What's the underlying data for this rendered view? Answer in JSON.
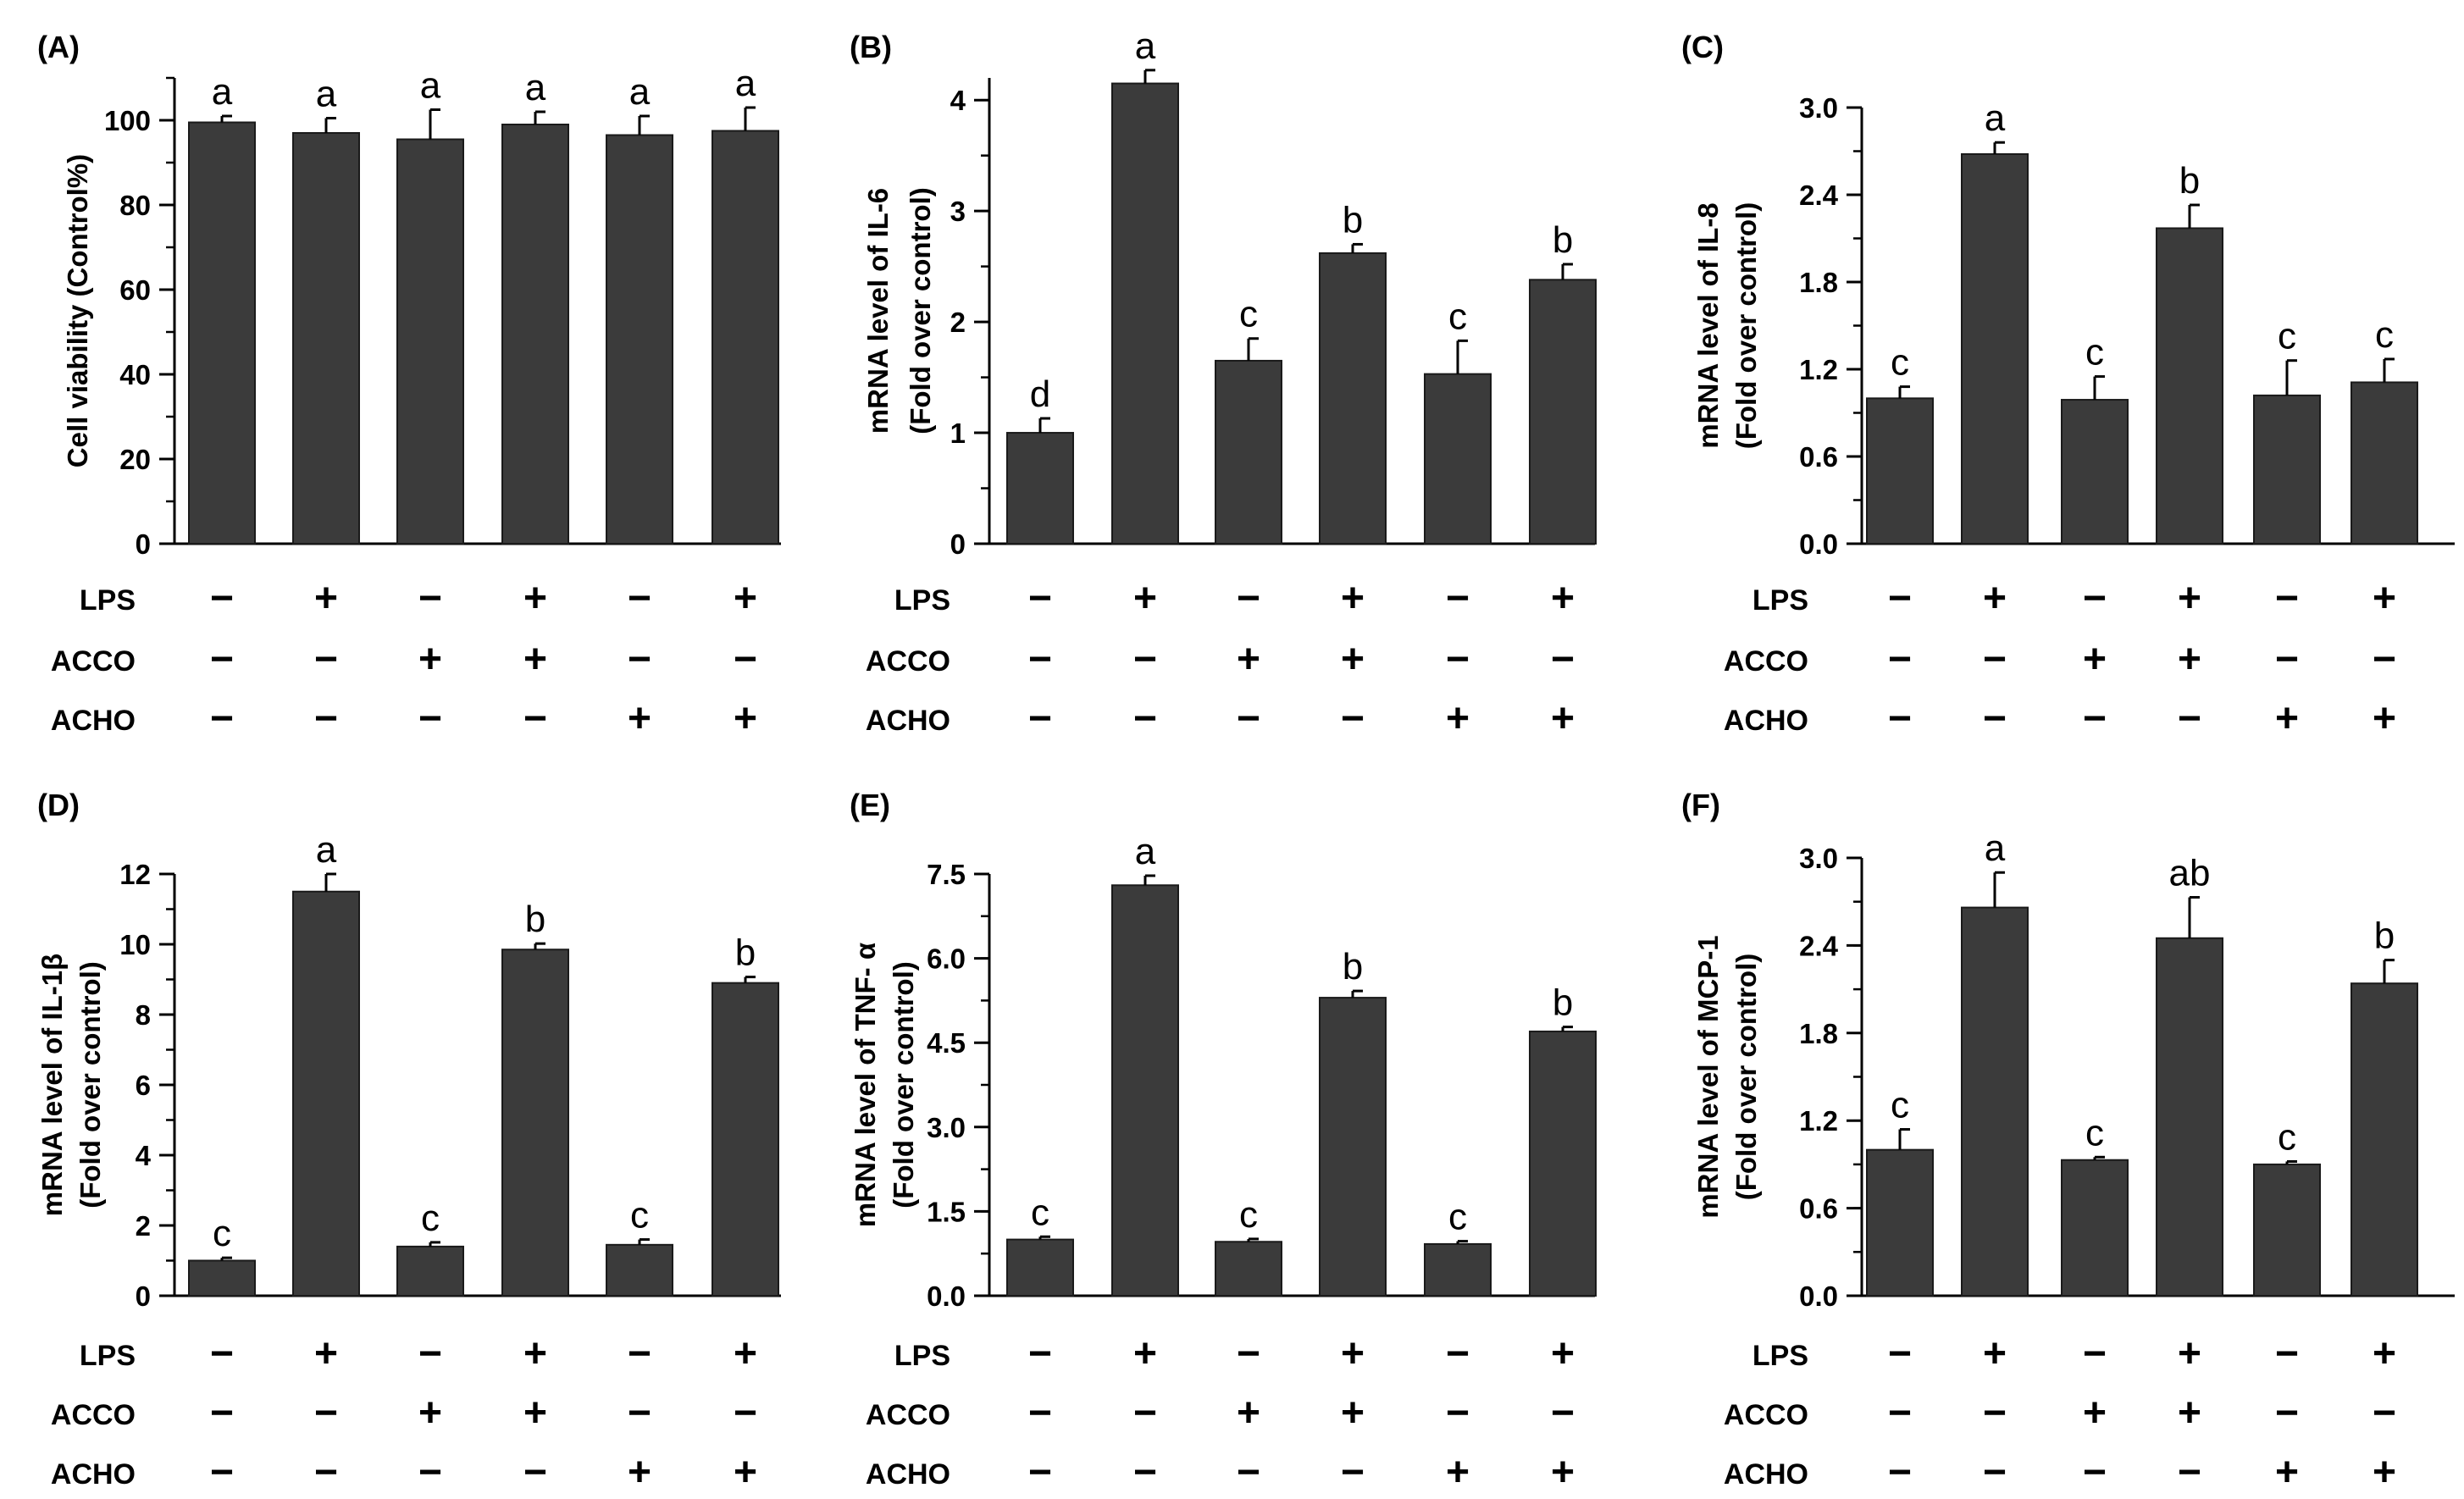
{
  "treatment_rows": [
    "LPS",
    "ACCO",
    "ACHO"
  ],
  "chart_data": [
    {
      "type": "bar",
      "panel": "(A)",
      "ylabel_lines": [
        "Cell viability (Control%)"
      ],
      "ylim": [
        0,
        110
      ],
      "yticks": [
        "0",
        "20",
        "40",
        "60",
        "80",
        "100"
      ],
      "minor_step": 10,
      "values": [
        99.5,
        97.0,
        95.5,
        99.0,
        96.5,
        97.5
      ],
      "errors": [
        1.5,
        3.5,
        7.0,
        3.0,
        4.5,
        5.5
      ],
      "letters": [
        "a",
        "a",
        "a",
        "a",
        "a",
        "a"
      ],
      "treatments": {
        "LPS": [
          "−",
          "+",
          "−",
          "+",
          "−",
          "+"
        ],
        "ACCO": [
          "−",
          "−",
          "+",
          "+",
          "−",
          "−"
        ],
        "ACHO": [
          "−",
          "−",
          "−",
          "−",
          "+",
          "+"
        ]
      }
    },
    {
      "type": "bar",
      "panel": "(B)",
      "ylabel_lines": [
        "mRNA level of IL-6",
        "(Fold over control)"
      ],
      "ylim": [
        0,
        4.2
      ],
      "yticks": [
        "0",
        "1",
        "2",
        "3",
        "4"
      ],
      "minor_step": 0.5,
      "values": [
        1.0,
        4.15,
        1.65,
        2.62,
        1.53,
        2.38
      ],
      "errors": [
        0.13,
        0.12,
        0.2,
        0.08,
        0.3,
        0.14
      ],
      "letters": [
        "d",
        "a",
        "c",
        "b",
        "c",
        "b"
      ],
      "treatments": {
        "LPS": [
          "−",
          "+",
          "−",
          "+",
          "−",
          "+"
        ],
        "ACCO": [
          "−",
          "−",
          "+",
          "+",
          "−",
          "−"
        ],
        "ACHO": [
          "−",
          "−",
          "−",
          "−",
          "+",
          "+"
        ]
      }
    },
    {
      "type": "bar",
      "panel": "(C)",
      "ylabel_lines": [
        "mRNA level of IL-8",
        "(Fold over control)"
      ],
      "ylim": [
        0,
        3.0
      ],
      "yticks": [
        "0.0",
        "0.6",
        "1.2",
        "1.8",
        "2.4",
        "3.0"
      ],
      "minor_step": 0.3,
      "values": [
        1.0,
        2.68,
        0.99,
        2.17,
        1.02,
        1.11
      ],
      "errors": [
        0.08,
        0.08,
        0.16,
        0.16,
        0.24,
        0.16
      ],
      "letters": [
        "c",
        "a",
        "c",
        "b",
        "c",
        "c"
      ],
      "treatments": {
        "LPS": [
          "−",
          "+",
          "−",
          "+",
          "−",
          "+"
        ],
        "ACCO": [
          "−",
          "−",
          "+",
          "+",
          "−",
          "−"
        ],
        "ACHO": [
          "−",
          "−",
          "−",
          "−",
          "+",
          "+"
        ]
      }
    },
    {
      "type": "bar",
      "panel": "(D)",
      "ylabel_lines": [
        "mRNA level of IL-1β",
        "(Fold over control)"
      ],
      "ylim": [
        0,
        12
      ],
      "yticks": [
        "0",
        "2",
        "4",
        "6",
        "8",
        "10",
        "12"
      ],
      "minor_step": 1,
      "values": [
        1.0,
        11.5,
        1.4,
        9.85,
        1.45,
        8.9
      ],
      "errors": [
        0.08,
        0.5,
        0.12,
        0.17,
        0.15,
        0.17
      ],
      "letters": [
        "c",
        "a",
        "c",
        "b",
        "c",
        "b"
      ],
      "treatments": {
        "LPS": [
          "−",
          "+",
          "−",
          "+",
          "−",
          "+"
        ],
        "ACCO": [
          "−",
          "−",
          "+",
          "+",
          "−",
          "−"
        ],
        "ACHO": [
          "−",
          "−",
          "−",
          "−",
          "+",
          "+"
        ]
      }
    },
    {
      "type": "bar",
      "panel": "(E)",
      "ylabel_lines": [
        "mRNA level of TNF- α",
        "(Fold over control)"
      ],
      "ylim": [
        0,
        7.5
      ],
      "yticks": [
        "0.0",
        "1.5",
        "3.0",
        "4.5",
        "6.0",
        "7.5"
      ],
      "minor_step": 0.75,
      "values": [
        1.0,
        7.3,
        0.96,
        5.3,
        0.92,
        4.7
      ],
      "errors": [
        0.05,
        0.17,
        0.05,
        0.12,
        0.05,
        0.08
      ],
      "letters": [
        "c",
        "a",
        "c",
        "b",
        "c",
        "b"
      ],
      "treatments": {
        "LPS": [
          "−",
          "+",
          "−",
          "+",
          "−",
          "+"
        ],
        "ACCO": [
          "−",
          "−",
          "+",
          "+",
          "−",
          "−"
        ],
        "ACHO": [
          "−",
          "−",
          "−",
          "−",
          "+",
          "+"
        ]
      }
    },
    {
      "type": "bar",
      "panel": "(F)",
      "ylabel_lines": [
        "mRNA level of MCP-1",
        "(Fold over control)"
      ],
      "ylim": [
        0,
        3.0
      ],
      "yticks": [
        "0.0",
        "0.6",
        "1.2",
        "1.8",
        "2.4",
        "3.0"
      ],
      "minor_step": 0.3,
      "values": [
        1.0,
        2.66,
        0.93,
        2.45,
        0.9,
        2.14
      ],
      "errors": [
        0.14,
        0.24,
        0.02,
        0.28,
        0.02,
        0.16
      ],
      "letters": [
        "c",
        "a",
        "c",
        "ab",
        "c",
        "b"
      ],
      "treatments": {
        "LPS": [
          "−",
          "+",
          "−",
          "+",
          "−",
          "+"
        ],
        "ACCO": [
          "−",
          "−",
          "+",
          "+",
          "−",
          "−"
        ],
        "ACHO": [
          "−",
          "−",
          "−",
          "−",
          "+",
          "+"
        ]
      }
    }
  ]
}
